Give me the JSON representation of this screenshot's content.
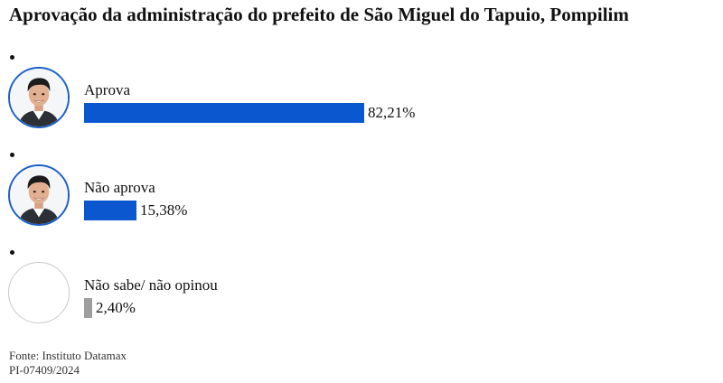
{
  "chart_data": {
    "type": "bar",
    "orientation": "horizontal",
    "title": "Aprovação da administração do prefeito de São Miguel do Tapuio, Pompilim",
    "categories": [
      "Aprova",
      "Não aprova",
      "Não sabe/ não opinou"
    ],
    "values": [
      82.21,
      15.38,
      2.4
    ],
    "value_labels": [
      "82,21%",
      "15,38%",
      "2,40%"
    ],
    "colors": [
      "#0b57d0",
      "#0b57d0",
      "#9e9e9e"
    ],
    "avatars": [
      "candidate-photo",
      "candidate-photo",
      "none"
    ],
    "xlim": [
      0,
      100
    ],
    "xlabel": "",
    "ylabel": ""
  },
  "source": {
    "line1": "Fonte: Instituto Datamax",
    "line2": "PI-07409/2024"
  }
}
